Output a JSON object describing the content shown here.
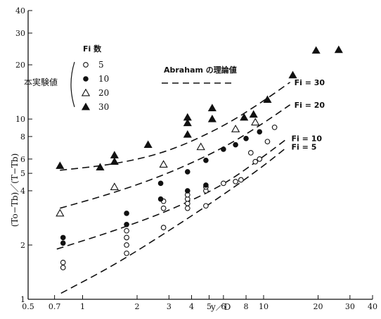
{
  "chart_data": {
    "type": "scatter",
    "xscale": "log",
    "yscale": "log",
    "xlim": [
      0.5,
      40
    ],
    "ylim": [
      1,
      40
    ],
    "xticks": [
      "0.5",
      "0.7",
      "1",
      "2",
      "3",
      "4",
      "5",
      "6",
      "8",
      "10",
      "20",
      "30",
      "40"
    ],
    "yticks": [
      "1",
      "2",
      "4",
      "5",
      "6",
      "8",
      "10",
      "20",
      "30",
      "40"
    ],
    "xlabel": "y／D",
    "ylabel": "(To−Tb)／(T−Tb)",
    "legend_title": "Fi 数",
    "legend_group_label": "本実験値",
    "theory_label": "Abraham の理論値",
    "series": [
      {
        "name": "5",
        "marker": "circle-open",
        "points": [
          [
            0.78,
            1.6
          ],
          [
            0.78,
            1.5
          ],
          [
            1.75,
            2.0
          ],
          [
            1.75,
            1.8
          ],
          [
            1.75,
            2.2
          ],
          [
            1.75,
            2.4
          ],
          [
            2.8,
            2.5
          ],
          [
            2.8,
            3.2
          ],
          [
            2.8,
            3.5
          ],
          [
            3.8,
            3.2
          ],
          [
            3.8,
            3.4
          ],
          [
            3.8,
            3.6
          ],
          [
            3.8,
            3.8
          ],
          [
            4.8,
            3.3
          ],
          [
            4.8,
            4.0
          ],
          [
            4.8,
            4.2
          ],
          [
            6.0,
            4.4
          ],
          [
            7.0,
            4.5
          ],
          [
            7.5,
            4.6
          ],
          [
            8.5,
            6.5
          ],
          [
            9.0,
            5.8
          ],
          [
            9.5,
            6.0
          ],
          [
            10.5,
            7.5
          ],
          [
            11.5,
            9.0
          ]
        ]
      },
      {
        "name": "10",
        "marker": "circle-filled",
        "points": [
          [
            0.78,
            2.2
          ],
          [
            0.78,
            2.05
          ],
          [
            1.75,
            3.0
          ],
          [
            1.75,
            2.6
          ],
          [
            2.7,
            4.4
          ],
          [
            2.7,
            3.6
          ],
          [
            3.8,
            4.0
          ],
          [
            3.8,
            5.1
          ],
          [
            4.8,
            4.3
          ],
          [
            4.8,
            5.9
          ],
          [
            6.0,
            6.8
          ],
          [
            7.0,
            7.2
          ],
          [
            8.0,
            7.8
          ],
          [
            9.5,
            8.5
          ]
        ]
      },
      {
        "name": "20",
        "marker": "triangle-open",
        "points": [
          [
            0.75,
            3.0
          ],
          [
            1.5,
            4.2
          ],
          [
            2.8,
            5.6
          ],
          [
            4.5,
            7.0
          ],
          [
            7.0,
            8.8
          ],
          [
            9.0,
            9.6
          ]
        ]
      },
      {
        "name": "30",
        "marker": "triangle-filled",
        "points": [
          [
            0.75,
            5.5
          ],
          [
            1.25,
            5.4
          ],
          [
            1.5,
            6.3
          ],
          [
            1.5,
            5.8
          ],
          [
            2.3,
            7.2
          ],
          [
            3.8,
            10.2
          ],
          [
            3.8,
            9.5
          ],
          [
            3.8,
            8.2
          ],
          [
            5.2,
            11.5
          ],
          [
            5.2,
            10.0
          ],
          [
            7.8,
            10.2
          ],
          [
            8.8,
            10.6
          ],
          [
            10.5,
            12.8
          ],
          [
            14.5,
            17.5
          ],
          [
            19.5,
            24.0
          ],
          [
            26.0,
            24.2
          ]
        ]
      }
    ],
    "theory_curves": [
      {
        "label": "Fi = 5",
        "points": [
          [
            0.76,
            1.08
          ],
          [
            1.5,
            1.55
          ],
          [
            3.0,
            2.4
          ],
          [
            6.0,
            3.8
          ],
          [
            10.0,
            5.5
          ],
          [
            13.5,
            7.0
          ]
        ]
      },
      {
        "label": "Fi = 10",
        "points": [
          [
            0.72,
            1.9
          ],
          [
            1.5,
            2.4
          ],
          [
            3.0,
            3.1
          ],
          [
            6.0,
            4.3
          ],
          [
            10.0,
            6.2
          ],
          [
            13.5,
            7.8
          ]
        ]
      },
      {
        "label": "Fi = 20",
        "points": [
          [
            0.75,
            3.2
          ],
          [
            1.5,
            3.9
          ],
          [
            3.0,
            5.0
          ],
          [
            6.0,
            6.9
          ],
          [
            10.0,
            9.5
          ],
          [
            14.0,
            12.0
          ]
        ]
      },
      {
        "label": "Fi = 30",
        "points": [
          [
            0.75,
            5.2
          ],
          [
            1.5,
            5.6
          ],
          [
            3.0,
            6.6
          ],
          [
            6.0,
            9.1
          ],
          [
            10.0,
            12.6
          ],
          [
            14.0,
            16.0
          ]
        ]
      }
    ]
  }
}
